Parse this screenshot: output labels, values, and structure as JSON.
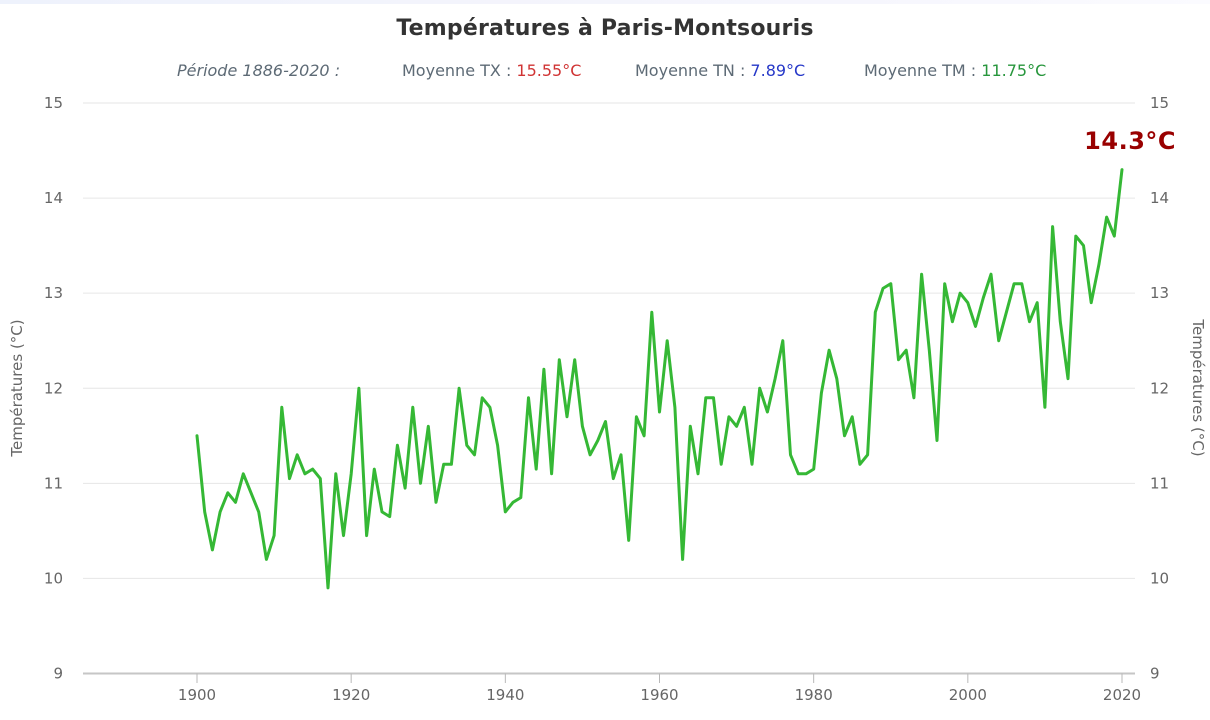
{
  "title": "Températures à Paris-Montsouris",
  "subtitle": {
    "periode_label": "Période 1886-2020 :",
    "tx_label": "Moyenne TX : ",
    "tx_value": "15.55°C",
    "tn_label": "Moyenne TN : ",
    "tn_value": "7.89°C",
    "tm_label": "Moyenne TM : ",
    "tm_value": "11.75°C"
  },
  "annotation": {
    "last_value_label": "14.3°C"
  },
  "colors": {
    "line_green": "#35b835",
    "annotation_red": "#990000",
    "tx_red": "#d03434",
    "tn_blue": "#2638c8",
    "tm_green": "#27963c",
    "grid": "#e6e6e6",
    "axis_line": "#c6c6c6",
    "tick": "#b8b8b8",
    "label_gray": "#666666"
  },
  "chart_data": {
    "type": "line",
    "title": "Températures à Paris-Montsouris",
    "xlabel": "",
    "ylabel": "Températures (°C)",
    "ylim": [
      9,
      15
    ],
    "xlim": [
      1900,
      2020
    ],
    "y_ticks": [
      15,
      14,
      13,
      12,
      11,
      10,
      9
    ],
    "x_ticks": [
      1900,
      1920,
      1940,
      1960,
      1980,
      2000,
      2020
    ],
    "grid": "horizontal",
    "legend": "none",
    "x": [
      1900,
      1901,
      1902,
      1903,
      1904,
      1905,
      1906,
      1907,
      1908,
      1909,
      1910,
      1911,
      1912,
      1913,
      1914,
      1915,
      1916,
      1917,
      1918,
      1919,
      1920,
      1921,
      1922,
      1923,
      1924,
      1925,
      1926,
      1927,
      1928,
      1929,
      1930,
      1931,
      1932,
      1933,
      1934,
      1935,
      1936,
      1937,
      1938,
      1939,
      1940,
      1941,
      1942,
      1943,
      1944,
      1945,
      1946,
      1947,
      1948,
      1949,
      1950,
      1951,
      1952,
      1953,
      1954,
      1955,
      1956,
      1957,
      1958,
      1959,
      1960,
      1961,
      1962,
      1963,
      1964,
      1965,
      1966,
      1967,
      1968,
      1969,
      1970,
      1971,
      1972,
      1973,
      1974,
      1975,
      1976,
      1977,
      1978,
      1979,
      1980,
      1981,
      1982,
      1983,
      1984,
      1985,
      1986,
      1987,
      1988,
      1989,
      1990,
      1991,
      1992,
      1993,
      1994,
      1995,
      1996,
      1997,
      1998,
      1999,
      2000,
      2001,
      2002,
      2003,
      2004,
      2005,
      2006,
      2007,
      2008,
      2009,
      2010,
      2011,
      2012,
      2013,
      2014,
      2015,
      2016,
      2017,
      2018,
      2019,
      2020
    ],
    "values": [
      11.5,
      10.7,
      10.3,
      10.7,
      10.9,
      10.8,
      11.1,
      10.9,
      10.7,
      10.2,
      10.45,
      11.8,
      11.05,
      11.3,
      11.1,
      11.15,
      11.05,
      9.9,
      11.1,
      10.45,
      11.1,
      12.0,
      10.45,
      11.15,
      10.7,
      10.65,
      11.4,
      10.95,
      11.8,
      11.0,
      11.6,
      10.8,
      11.2,
      11.2,
      12.0,
      11.4,
      11.3,
      11.9,
      11.8,
      11.4,
      10.7,
      10.8,
      10.85,
      11.9,
      11.15,
      12.2,
      11.1,
      12.3,
      11.7,
      12.3,
      11.6,
      11.3,
      11.45,
      11.65,
      11.05,
      11.3,
      10.4,
      11.7,
      11.5,
      12.8,
      11.75,
      12.5,
      11.8,
      10.2,
      11.6,
      11.1,
      11.9,
      11.9,
      11.2,
      11.7,
      11.6,
      11.8,
      11.2,
      12.0,
      11.75,
      12.1,
      12.5,
      11.3,
      11.1,
      11.1,
      11.15,
      11.95,
      12.4,
      12.1,
      11.5,
      11.7,
      11.2,
      11.3,
      12.8,
      13.05,
      13.1,
      12.3,
      12.4,
      11.9,
      13.2,
      12.4,
      11.45,
      13.1,
      12.7,
      13.0,
      12.9,
      12.65,
      12.95,
      13.2,
      12.5,
      12.8,
      13.1,
      13.1,
      12.7,
      12.9,
      11.8,
      13.7,
      12.7,
      12.1,
      13.6,
      13.5,
      12.9,
      13.3,
      13.8,
      13.6,
      14.3
    ],
    "last_point_label": "14.3°C"
  }
}
